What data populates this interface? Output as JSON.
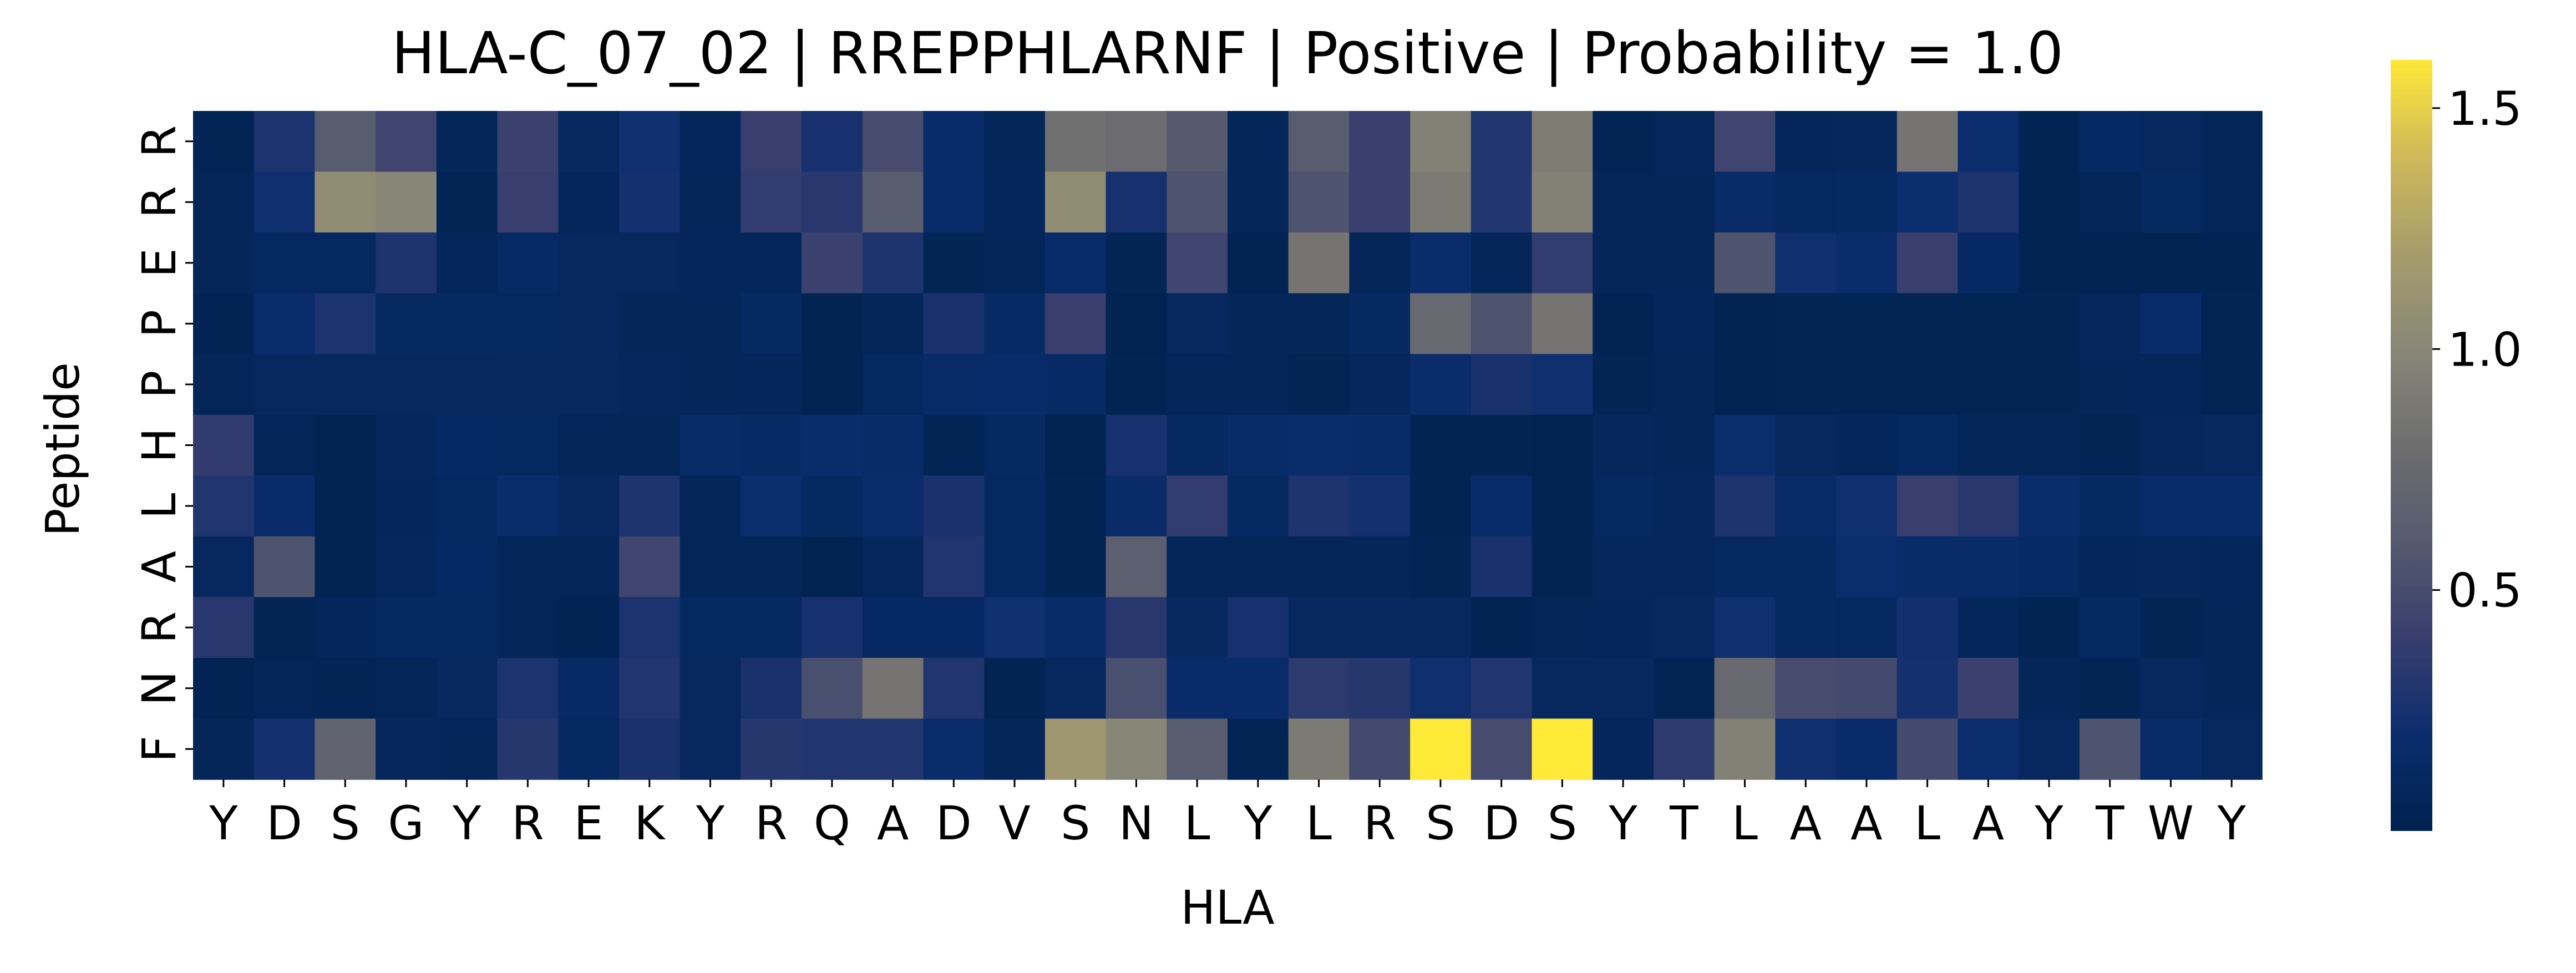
{
  "chart_data": {
    "type": "heatmap",
    "title": "HLA-C_07_02 | RREPPHLARNF | Positive | Probability = 1.0",
    "xlabel": "HLA",
    "ylabel": "Peptide",
    "x_categories": [
      "Y",
      "D",
      "S",
      "G",
      "Y",
      "R",
      "E",
      "K",
      "Y",
      "R",
      "Q",
      "A",
      "D",
      "V",
      "S",
      "N",
      "L",
      "Y",
      "L",
      "R",
      "S",
      "D",
      "S",
      "Y",
      "T",
      "L",
      "A",
      "A",
      "L",
      "A",
      "Y",
      "T",
      "W",
      "Y"
    ],
    "y_categories": [
      "R",
      "R",
      "E",
      "P",
      "P",
      "H",
      "L",
      "A",
      "R",
      "N",
      "F"
    ],
    "colorbar": {
      "ticks": [
        0.5,
        1.0,
        1.5
      ],
      "tick_labels": [
        "0.5",
        "1.0",
        "1.5"
      ],
      "min": 0.0,
      "max": 1.6,
      "colormap": "cividis"
    },
    "values": [
      [
        0.05,
        0.27,
        0.62,
        0.45,
        0.07,
        0.42,
        0.1,
        0.22,
        0.08,
        0.4,
        0.25,
        0.5,
        0.17,
        0.07,
        0.82,
        0.78,
        0.6,
        0.07,
        0.62,
        0.4,
        0.95,
        0.3,
        0.92,
        0.05,
        0.09,
        0.45,
        0.08,
        0.09,
        0.85,
        0.2,
        0.04,
        0.13,
        0.1,
        0.06
      ],
      [
        0.06,
        0.22,
        1.05,
        1.0,
        0.05,
        0.4,
        0.08,
        0.24,
        0.06,
        0.38,
        0.33,
        0.62,
        0.17,
        0.08,
        1.05,
        0.25,
        0.55,
        0.07,
        0.55,
        0.4,
        0.9,
        0.3,
        0.95,
        0.06,
        0.07,
        0.16,
        0.11,
        0.12,
        0.21,
        0.28,
        0.04,
        0.07,
        0.12,
        0.06
      ],
      [
        0.07,
        0.11,
        0.11,
        0.28,
        0.08,
        0.14,
        0.1,
        0.1,
        0.08,
        0.08,
        0.42,
        0.28,
        0.05,
        0.06,
        0.17,
        0.05,
        0.45,
        0.04,
        0.85,
        0.07,
        0.18,
        0.06,
        0.38,
        0.07,
        0.07,
        0.55,
        0.22,
        0.18,
        0.4,
        0.13,
        0.04,
        0.04,
        0.03,
        0.04
      ],
      [
        0.04,
        0.18,
        0.27,
        0.12,
        0.12,
        0.11,
        0.1,
        0.07,
        0.07,
        0.12,
        0.03,
        0.07,
        0.26,
        0.14,
        0.4,
        0.02,
        0.1,
        0.07,
        0.07,
        0.12,
        0.75,
        0.55,
        0.85,
        0.04,
        0.08,
        0.03,
        0.05,
        0.05,
        0.05,
        0.05,
        0.05,
        0.09,
        0.17,
        0.05
      ],
      [
        0.06,
        0.1,
        0.1,
        0.1,
        0.1,
        0.1,
        0.1,
        0.09,
        0.07,
        0.08,
        0.03,
        0.11,
        0.15,
        0.17,
        0.14,
        0.03,
        0.06,
        0.06,
        0.05,
        0.09,
        0.18,
        0.26,
        0.22,
        0.05,
        0.07,
        0.03,
        0.05,
        0.05,
        0.05,
        0.05,
        0.05,
        0.07,
        0.08,
        0.05
      ],
      [
        0.37,
        0.06,
        0.02,
        0.09,
        0.13,
        0.11,
        0.07,
        0.07,
        0.16,
        0.14,
        0.18,
        0.15,
        0.05,
        0.12,
        0.02,
        0.25,
        0.12,
        0.16,
        0.18,
        0.16,
        0.03,
        0.03,
        0.02,
        0.09,
        0.06,
        0.2,
        0.1,
        0.08,
        0.11,
        0.07,
        0.07,
        0.05,
        0.09,
        0.1
      ],
      [
        0.3,
        0.17,
        0.02,
        0.08,
        0.11,
        0.18,
        0.1,
        0.28,
        0.07,
        0.2,
        0.12,
        0.18,
        0.26,
        0.11,
        0.04,
        0.16,
        0.38,
        0.12,
        0.28,
        0.24,
        0.03,
        0.17,
        0.02,
        0.11,
        0.09,
        0.28,
        0.15,
        0.22,
        0.4,
        0.33,
        0.18,
        0.12,
        0.17,
        0.17
      ],
      [
        0.1,
        0.55,
        0.03,
        0.09,
        0.13,
        0.06,
        0.06,
        0.45,
        0.06,
        0.06,
        0.03,
        0.09,
        0.3,
        0.11,
        0.04,
        0.65,
        0.06,
        0.06,
        0.06,
        0.07,
        0.05,
        0.26,
        0.03,
        0.09,
        0.09,
        0.12,
        0.12,
        0.2,
        0.16,
        0.16,
        0.14,
        0.08,
        0.09,
        0.08
      ],
      [
        0.33,
        0.05,
        0.08,
        0.12,
        0.12,
        0.06,
        0.04,
        0.27,
        0.11,
        0.11,
        0.25,
        0.13,
        0.13,
        0.22,
        0.15,
        0.33,
        0.1,
        0.25,
        0.1,
        0.1,
        0.1,
        0.04,
        0.06,
        0.08,
        0.1,
        0.22,
        0.12,
        0.11,
        0.23,
        0.08,
        0.04,
        0.11,
        0.05,
        0.07
      ],
      [
        0.04,
        0.06,
        0.05,
        0.06,
        0.1,
        0.27,
        0.14,
        0.3,
        0.1,
        0.26,
        0.52,
        0.85,
        0.3,
        0.03,
        0.1,
        0.52,
        0.17,
        0.17,
        0.35,
        0.32,
        0.22,
        0.3,
        0.1,
        0.1,
        0.05,
        0.75,
        0.5,
        0.48,
        0.24,
        0.42,
        0.07,
        0.05,
        0.1,
        0.07
      ],
      [
        0.07,
        0.24,
        0.7,
        0.09,
        0.07,
        0.32,
        0.12,
        0.26,
        0.1,
        0.32,
        0.3,
        0.3,
        0.18,
        0.07,
        1.15,
        1.0,
        0.62,
        0.05,
        0.9,
        0.48,
        1.6,
        0.5,
        1.6,
        0.08,
        0.35,
        0.95,
        0.22,
        0.17,
        0.48,
        0.2,
        0.1,
        0.55,
        0.16,
        0.1
      ]
    ]
  }
}
